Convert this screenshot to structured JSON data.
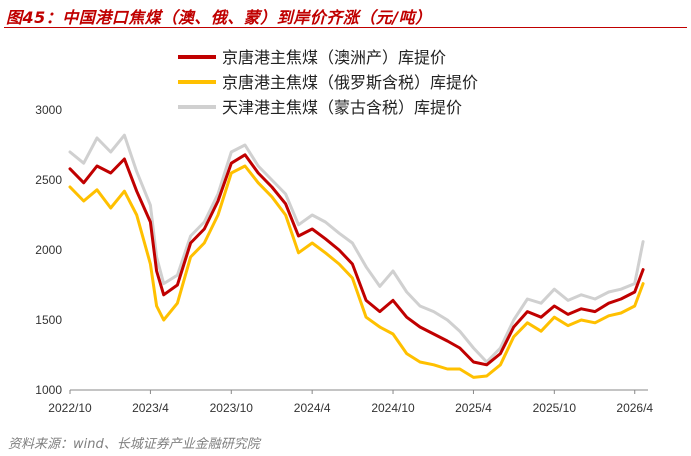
{
  "figure": {
    "title": "图45：中国港口焦煤（澳、俄、蒙）到岸价齐涨（元/吨）",
    "source": "资料来源：wind、长城证券产业金融研究院"
  },
  "colors": {
    "australia": "#c00000",
    "russia": "#ffc000",
    "mongolia": "#d0d0d0"
  },
  "chart_data": {
    "type": "line",
    "ylim": [
      1000,
      3000
    ],
    "yticks": [
      "1000",
      "1500",
      "2000",
      "2500",
      "3000"
    ],
    "xlim": [
      "2022-10",
      "2026-05"
    ],
    "xticks": [
      {
        "value": "2022-10",
        "label": "2022/10"
      },
      {
        "value": "2023-04",
        "label": "2023/4"
      },
      {
        "value": "2023-10",
        "label": "2023/10"
      },
      {
        "value": "2024-04",
        "label": "2024/4"
      },
      {
        "value": "2024-10",
        "label": "2024/10"
      },
      {
        "value": "2025-04",
        "label": "2025/4"
      },
      {
        "value": "2025-10",
        "label": "2025/10"
      },
      {
        "value": "2026-04",
        "label": "2026/4"
      }
    ],
    "legend_position": "top",
    "series": [
      {
        "name": "京唐港主焦煤（澳洲产）库提价",
        "key": "australia",
        "points": [
          [
            "2022-10-01",
            2580
          ],
          [
            "2022-11-01",
            2480
          ],
          [
            "2022-12-01",
            2600
          ],
          [
            "2023-01-01",
            2550
          ],
          [
            "2023-02-01",
            2650
          ],
          [
            "2023-03-01",
            2420
          ],
          [
            "2023-04-01",
            2200
          ],
          [
            "2023-04-15",
            1850
          ],
          [
            "2023-05-01",
            1680
          ],
          [
            "2023-06-01",
            1750
          ],
          [
            "2023-07-01",
            2050
          ],
          [
            "2023-08-01",
            2150
          ],
          [
            "2023-09-01",
            2350
          ],
          [
            "2023-10-01",
            2620
          ],
          [
            "2023-11-01",
            2680
          ],
          [
            "2023-12-01",
            2550
          ],
          [
            "2024-01-01",
            2450
          ],
          [
            "2024-02-01",
            2330
          ],
          [
            "2024-03-01",
            2100
          ],
          [
            "2024-04-01",
            2150
          ],
          [
            "2024-05-01",
            2080
          ],
          [
            "2024-06-01",
            2000
          ],
          [
            "2024-07-01",
            1900
          ],
          [
            "2024-08-01",
            1640
          ],
          [
            "2024-09-01",
            1560
          ],
          [
            "2024-10-01",
            1640
          ],
          [
            "2024-11-01",
            1520
          ],
          [
            "2024-12-01",
            1450
          ],
          [
            "2025-01-01",
            1400
          ],
          [
            "2025-02-01",
            1350
          ],
          [
            "2025-03-01",
            1300
          ],
          [
            "2025-04-01",
            1200
          ],
          [
            "2025-05-01",
            1180
          ],
          [
            "2025-06-01",
            1260
          ],
          [
            "2025-07-01",
            1450
          ],
          [
            "2025-08-01",
            1560
          ],
          [
            "2025-09-01",
            1520
          ],
          [
            "2025-10-01",
            1600
          ],
          [
            "2025-11-01",
            1540
          ],
          [
            "2025-12-01",
            1580
          ],
          [
            "2026-01-01",
            1560
          ],
          [
            "2026-02-01",
            1620
          ],
          [
            "2026-03-01",
            1650
          ],
          [
            "2026-04-01",
            1700
          ],
          [
            "2026-04-20",
            1860
          ]
        ]
      },
      {
        "name": "京唐港主焦煤（俄罗斯含税）库提价",
        "key": "russia",
        "points": [
          [
            "2022-10-01",
            2450
          ],
          [
            "2022-11-01",
            2350
          ],
          [
            "2022-12-01",
            2430
          ],
          [
            "2023-01-01",
            2300
          ],
          [
            "2023-02-01",
            2420
          ],
          [
            "2023-03-01",
            2250
          ],
          [
            "2023-04-01",
            1900
          ],
          [
            "2023-04-15",
            1600
          ],
          [
            "2023-05-01",
            1500
          ],
          [
            "2023-06-01",
            1620
          ],
          [
            "2023-07-01",
            1950
          ],
          [
            "2023-08-01",
            2050
          ],
          [
            "2023-09-01",
            2250
          ],
          [
            "2023-10-01",
            2550
          ],
          [
            "2023-11-01",
            2600
          ],
          [
            "2023-12-01",
            2480
          ],
          [
            "2024-01-01",
            2380
          ],
          [
            "2024-02-01",
            2250
          ],
          [
            "2024-03-01",
            1980
          ],
          [
            "2024-04-01",
            2050
          ],
          [
            "2024-05-01",
            1980
          ],
          [
            "2024-06-01",
            1900
          ],
          [
            "2024-07-01",
            1800
          ],
          [
            "2024-08-01",
            1520
          ],
          [
            "2024-09-01",
            1450
          ],
          [
            "2024-10-01",
            1400
          ],
          [
            "2024-11-01",
            1260
          ],
          [
            "2024-12-01",
            1200
          ],
          [
            "2025-01-01",
            1180
          ],
          [
            "2025-02-01",
            1150
          ],
          [
            "2025-03-01",
            1150
          ],
          [
            "2025-04-01",
            1090
          ],
          [
            "2025-05-01",
            1100
          ],
          [
            "2025-06-01",
            1180
          ],
          [
            "2025-07-01",
            1380
          ],
          [
            "2025-08-01",
            1480
          ],
          [
            "2025-09-01",
            1420
          ],
          [
            "2025-10-01",
            1520
          ],
          [
            "2025-11-01",
            1460
          ],
          [
            "2025-12-01",
            1500
          ],
          [
            "2026-01-01",
            1480
          ],
          [
            "2026-02-01",
            1530
          ],
          [
            "2026-03-01",
            1550
          ],
          [
            "2026-04-01",
            1600
          ],
          [
            "2026-04-20",
            1760
          ]
        ]
      },
      {
        "name": "天津港主焦煤（蒙古含税）库提价",
        "key": "mongolia",
        "points": [
          [
            "2022-10-01",
            2700
          ],
          [
            "2022-11-01",
            2620
          ],
          [
            "2022-12-01",
            2800
          ],
          [
            "2023-01-01",
            2700
          ],
          [
            "2023-02-01",
            2820
          ],
          [
            "2023-03-01",
            2560
          ],
          [
            "2023-04-01",
            2320
          ],
          [
            "2023-04-15",
            1950
          ],
          [
            "2023-05-01",
            1760
          ],
          [
            "2023-06-01",
            1820
          ],
          [
            "2023-07-01",
            2100
          ],
          [
            "2023-08-01",
            2200
          ],
          [
            "2023-09-01",
            2400
          ],
          [
            "2023-10-01",
            2700
          ],
          [
            "2023-11-01",
            2750
          ],
          [
            "2023-12-01",
            2600
          ],
          [
            "2024-01-01",
            2500
          ],
          [
            "2024-02-01",
            2400
          ],
          [
            "2024-03-01",
            2180
          ],
          [
            "2024-04-01",
            2250
          ],
          [
            "2024-05-01",
            2200
          ],
          [
            "2024-06-01",
            2120
          ],
          [
            "2024-07-01",
            2050
          ],
          [
            "2024-08-01",
            1880
          ],
          [
            "2024-09-01",
            1740
          ],
          [
            "2024-10-01",
            1850
          ],
          [
            "2024-11-01",
            1700
          ],
          [
            "2024-12-01",
            1600
          ],
          [
            "2025-01-01",
            1560
          ],
          [
            "2025-02-01",
            1500
          ],
          [
            "2025-03-01",
            1420
          ],
          [
            "2025-04-01",
            1300
          ],
          [
            "2025-05-01",
            1200
          ],
          [
            "2025-06-01",
            1300
          ],
          [
            "2025-07-01",
            1500
          ],
          [
            "2025-08-01",
            1650
          ],
          [
            "2025-09-01",
            1620
          ],
          [
            "2025-10-01",
            1720
          ],
          [
            "2025-11-01",
            1640
          ],
          [
            "2025-12-01",
            1680
          ],
          [
            "2026-01-01",
            1650
          ],
          [
            "2026-02-01",
            1700
          ],
          [
            "2026-03-01",
            1720
          ],
          [
            "2026-04-01",
            1760
          ],
          [
            "2026-04-20",
            2060
          ]
        ]
      }
    ]
  }
}
